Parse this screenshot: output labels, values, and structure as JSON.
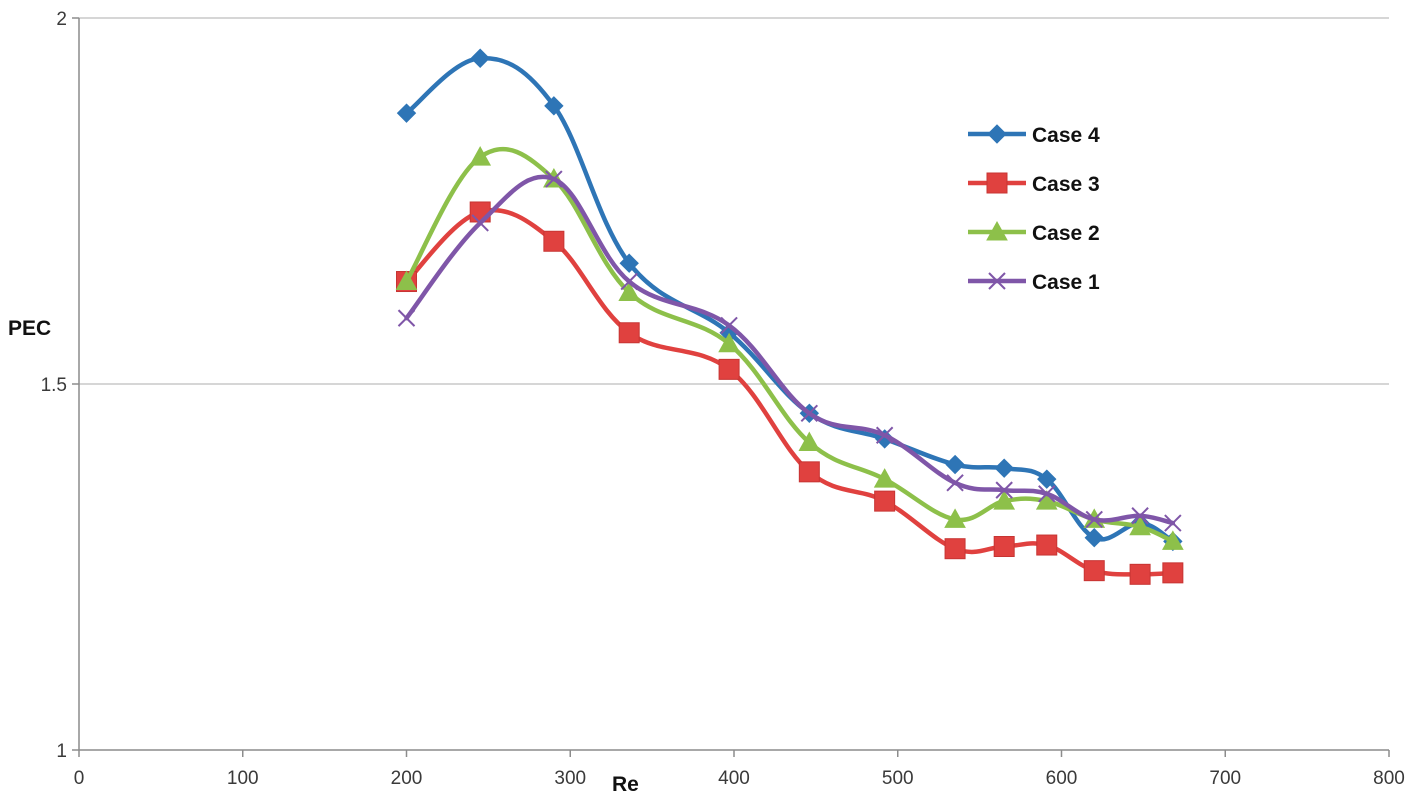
{
  "chart_data": {
    "type": "line",
    "title": "",
    "xlabel": "Re",
    "ylabel": "PEC",
    "xlim": [
      0,
      800
    ],
    "ylim": [
      1,
      2
    ],
    "xticks": [
      0,
      100,
      200,
      300,
      400,
      500,
      600,
      700,
      800
    ],
    "yticks": [
      1,
      1.5,
      2
    ],
    "ytick_labels": [
      "1",
      "1.5",
      "2"
    ],
    "grid": "horizontal major gridlines",
    "legend_position": "top-right",
    "x": [
      200,
      245,
      290,
      336,
      397,
      446,
      492,
      535,
      565,
      591,
      620,
      648,
      668
    ],
    "series": [
      {
        "name": "Case 4",
        "color": "#2e75b6",
        "marker": "diamond",
        "values": [
          1.87,
          1.945,
          1.88,
          1.665,
          1.57,
          1.46,
          1.425,
          1.39,
          1.385,
          1.37,
          1.29,
          1.31,
          1.285
        ]
      },
      {
        "name": "Case 3",
        "color": "#e0413f",
        "marker": "square",
        "values": [
          1.64,
          1.735,
          1.695,
          1.57,
          1.52,
          1.38,
          1.34,
          1.275,
          1.278,
          1.28,
          1.245,
          1.24,
          1.242
        ]
      },
      {
        "name": "Case 2",
        "color": "#8dc04a",
        "marker": "triangle",
        "values": [
          1.64,
          1.81,
          1.78,
          1.625,
          1.555,
          1.42,
          1.37,
          1.315,
          1.34,
          1.34,
          1.315,
          1.305,
          1.285
        ]
      },
      {
        "name": "Case 1",
        "color": "#7f56a8",
        "marker": "x",
        "values": [
          1.59,
          1.72,
          1.78,
          1.64,
          1.58,
          1.46,
          1.43,
          1.365,
          1.355,
          1.35,
          1.315,
          1.32,
          1.31
        ]
      }
    ]
  }
}
